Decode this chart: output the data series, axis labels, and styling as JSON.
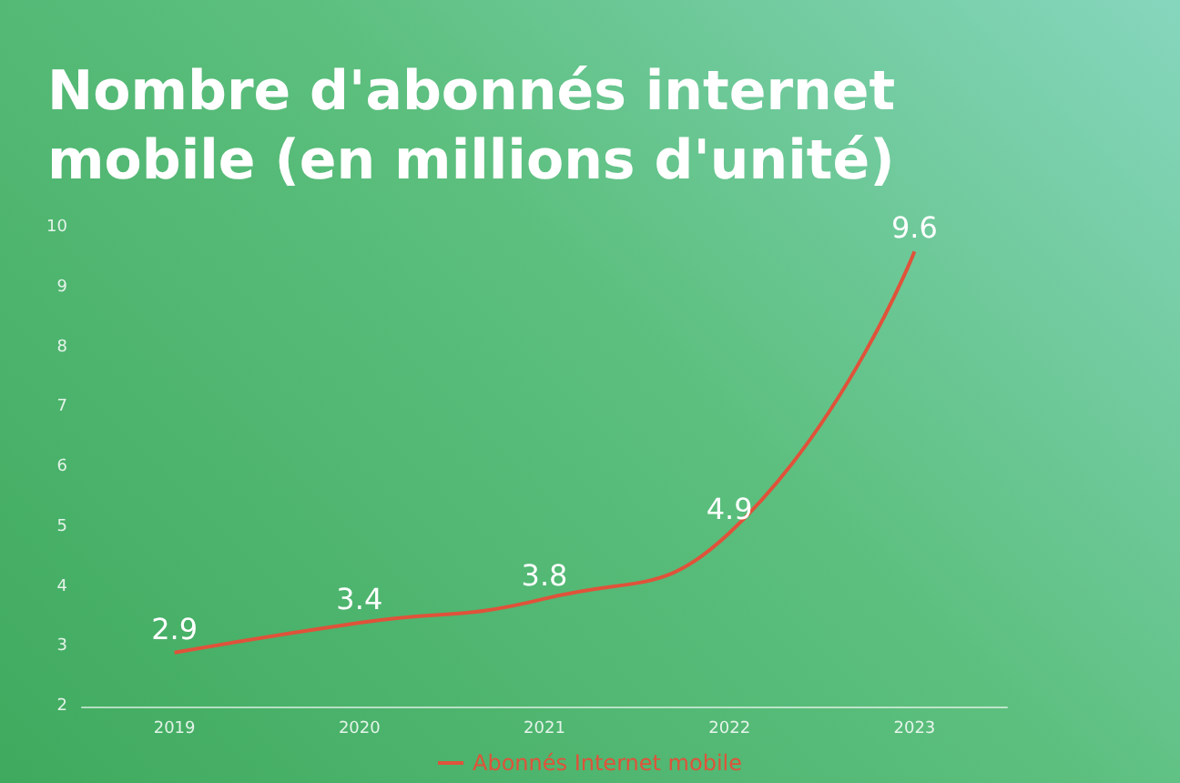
{
  "chart_data": {
    "type": "line",
    "title": "Nombre d'abonnés internet mobile (en millions d'unité)",
    "categories": [
      "2019",
      "2020",
      "2021",
      "2022",
      "2023"
    ],
    "series": [
      {
        "name": "Abonnés Internet mobile",
        "color": "#e0523a",
        "values": [
          2.9,
          3.4,
          3.8,
          4.9,
          9.6
        ]
      }
    ],
    "ylim": [
      2,
      10
    ],
    "yticks": [
      2,
      3,
      4,
      5,
      6,
      7,
      8,
      9,
      10
    ],
    "grid": false,
    "legend": "bottom",
    "marker": "none",
    "data_labels": true
  }
}
